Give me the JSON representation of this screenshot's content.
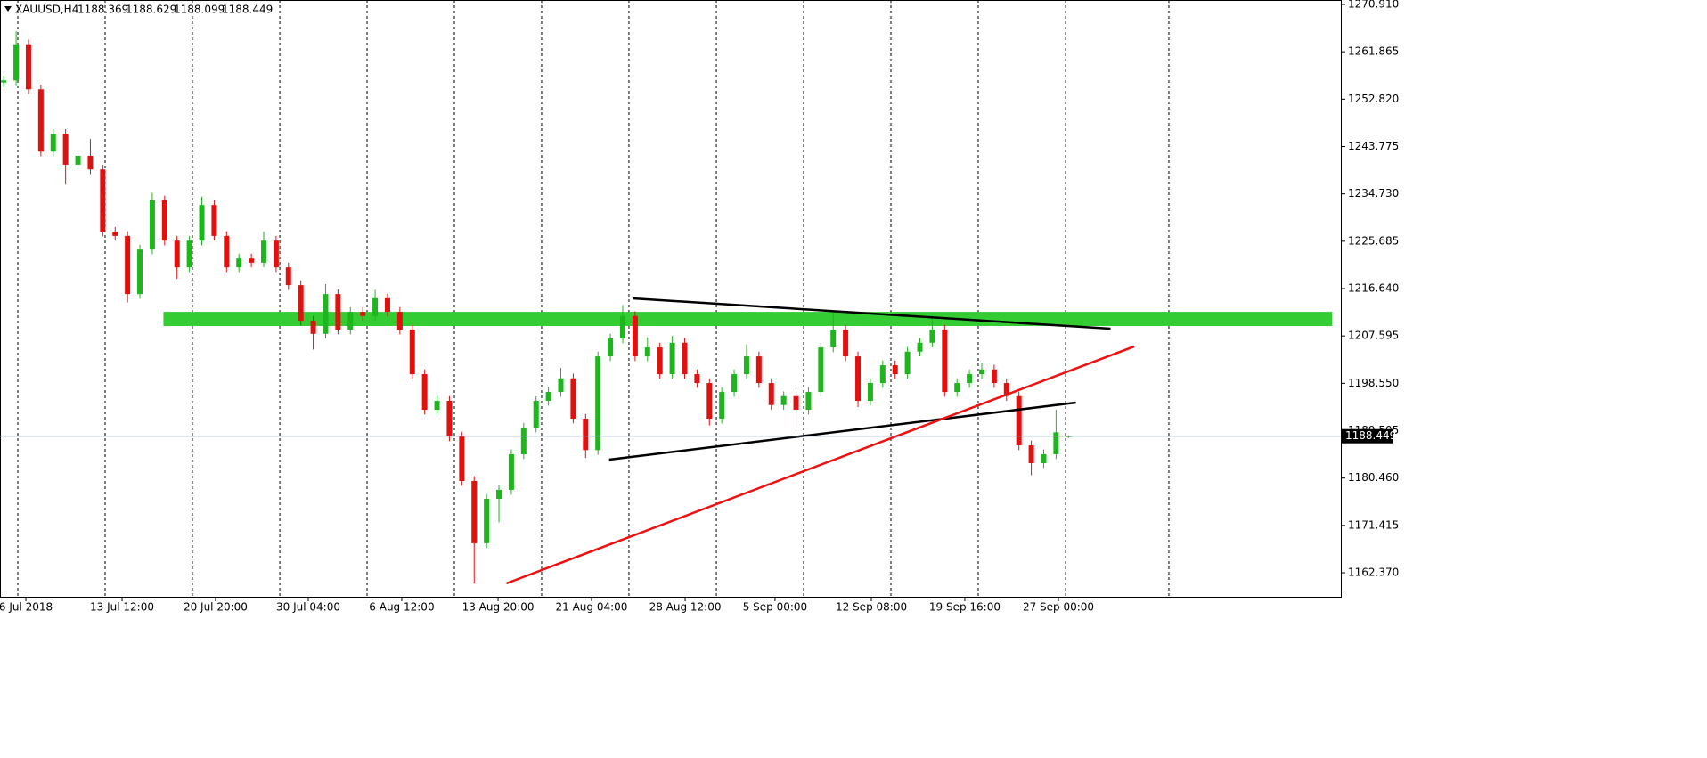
{
  "chart_data": {
    "type": "candlestick",
    "symbol": "XAUUSD,H4",
    "up_color": "#1fb51f",
    "down_color": "#e31010",
    "xlim": [
      -0.3,
      108.0
    ],
    "ylim": [
      1157.78,
      1271.76
    ],
    "yticks": [
      {
        "value": 1270.91,
        "label": "1270.910"
      },
      1261.865,
      {
        "value": 1252.82,
        "label": "1252.820"
      },
      1243.775,
      {
        "value": 1234.73,
        "label": "1234.730"
      },
      1225.685,
      {
        "value": 1216.64,
        "label": "1216.640"
      },
      1207.595,
      {
        "value": 1198.55,
        "label": "1198.550"
      },
      1189.505,
      {
        "value": 1180.46,
        "label": "1180.460"
      },
      1171.415,
      {
        "value": 1162.37,
        "label": "1162.370"
      }
    ],
    "xticks": [
      {
        "value": 1.79,
        "label": "6 Jul 2018"
      },
      {
        "value": 9.56,
        "label": "13 Jul 12:00"
      },
      {
        "value": 17.11,
        "label": "20 Jul 20:00"
      },
      {
        "value": 24.6,
        "label": "30 Jul 04:00"
      },
      {
        "value": 32.15,
        "label": "6 Aug 12:00"
      },
      {
        "value": 39.93,
        "label": "13 Aug 20:00"
      },
      {
        "value": 47.48,
        "label": "21 Aug 04:00"
      },
      {
        "value": 55.04,
        "label": "28 Aug 12:00"
      },
      {
        "value": 62.3,
        "label": "5 Sep 00:00"
      },
      {
        "value": 70.08,
        "label": "12 Sep 08:00"
      },
      {
        "value": 77.63,
        "label": "19 Sep 16:00"
      },
      {
        "value": 85.19,
        "label": "27 Sep 00:00"
      }
    ],
    "xgrid": [
      1.14,
      8.19,
      15.24,
      22.3,
      29.35,
      36.4,
      43.45,
      50.5,
      57.56,
      64.61,
      71.66,
      78.71,
      85.77,
      94.11
    ],
    "candles": [
      [
        1256.0,
        1257.3,
        1255.1,
        1256.4
      ],
      [
        1256.4,
        1265.8,
        1255.5,
        1263.3
      ],
      [
        1263.3,
        1264.2,
        1253.8,
        1254.7
      ],
      [
        1254.7,
        1255.6,
        1241.9,
        1242.8
      ],
      [
        1242.8,
        1247.1,
        1241.9,
        1246.2
      ],
      [
        1246.2,
        1247.1,
        1236.5,
        1240.3
      ],
      [
        1240.3,
        1242.9,
        1239.4,
        1242.0
      ],
      [
        1242.0,
        1245.2,
        1238.5,
        1239.4
      ],
      [
        1239.4,
        1240.3,
        1226.6,
        1227.5
      ],
      [
        1227.5,
        1228.4,
        1225.8,
        1226.7
      ],
      [
        1226.7,
        1227.6,
        1214.0,
        1215.6
      ],
      [
        1215.6,
        1225.0,
        1214.7,
        1224.1
      ],
      [
        1224.1,
        1234.9,
        1223.2,
        1233.5
      ],
      [
        1233.5,
        1234.4,
        1224.9,
        1225.8
      ],
      [
        1225.8,
        1226.7,
        1218.5,
        1220.7
      ],
      [
        1220.7,
        1226.7,
        1219.8,
        1225.8
      ],
      [
        1225.8,
        1234.2,
        1224.9,
        1232.6
      ],
      [
        1232.6,
        1233.5,
        1225.8,
        1226.7
      ],
      [
        1226.7,
        1227.6,
        1219.8,
        1220.7
      ],
      [
        1220.7,
        1223.3,
        1219.8,
        1222.4
      ],
      [
        1222.4,
        1223.3,
        1220.7,
        1221.6
      ],
      [
        1221.6,
        1227.5,
        1220.7,
        1225.8
      ],
      [
        1225.8,
        1226.7,
        1219.8,
        1220.7
      ],
      [
        1220.7,
        1221.6,
        1216.4,
        1217.3
      ],
      [
        1217.3,
        1218.2,
        1209.6,
        1210.5
      ],
      [
        1210.5,
        1211.4,
        1205.0,
        1208.0
      ],
      [
        1208.0,
        1217.5,
        1207.1,
        1215.6
      ],
      [
        1215.6,
        1216.5,
        1207.9,
        1208.8
      ],
      [
        1208.8,
        1213.1,
        1207.9,
        1212.2
      ],
      [
        1212.2,
        1213.1,
        1210.5,
        1211.4
      ],
      [
        1211.4,
        1216.4,
        1210.5,
        1214.8
      ],
      [
        1214.8,
        1215.7,
        1211.3,
        1212.2
      ],
      [
        1212.2,
        1213.1,
        1207.9,
        1208.8
      ],
      [
        1208.8,
        1209.7,
        1199.4,
        1200.3
      ],
      [
        1200.3,
        1201.2,
        1192.6,
        1193.5
      ],
      [
        1193.5,
        1196.1,
        1192.6,
        1195.2
      ],
      [
        1195.2,
        1196.1,
        1187.5,
        1188.4
      ],
      [
        1188.4,
        1189.3,
        1179.0,
        1179.9
      ],
      [
        1179.9,
        1180.8,
        1160.3,
        1168.0
      ],
      [
        1168.0,
        1177.4,
        1167.1,
        1176.5
      ],
      [
        1176.5,
        1179.1,
        1172.0,
        1178.2
      ],
      [
        1178.2,
        1185.9,
        1177.3,
        1185.0
      ],
      [
        1185.0,
        1191.0,
        1184.1,
        1190.1
      ],
      [
        1190.1,
        1196.1,
        1189.2,
        1195.2
      ],
      [
        1195.2,
        1197.8,
        1194.3,
        1196.9
      ],
      [
        1196.9,
        1201.5,
        1196.0,
        1199.5
      ],
      [
        1199.5,
        1200.4,
        1190.9,
        1191.8
      ],
      [
        1191.8,
        1192.7,
        1184.3,
        1185.8
      ],
      [
        1185.8,
        1204.6,
        1184.9,
        1203.7
      ],
      [
        1203.7,
        1208.0,
        1202.8,
        1207.1
      ],
      [
        1207.1,
        1213.5,
        1206.2,
        1211.4
      ],
      [
        1211.4,
        1212.3,
        1202.8,
        1203.7
      ],
      [
        1203.7,
        1207.3,
        1202.8,
        1205.4
      ],
      [
        1205.4,
        1206.3,
        1199.4,
        1200.3
      ],
      [
        1200.3,
        1207.6,
        1199.4,
        1206.3
      ],
      [
        1206.3,
        1207.2,
        1199.4,
        1200.3
      ],
      [
        1200.3,
        1201.2,
        1197.7,
        1198.6
      ],
      [
        1198.6,
        1199.5,
        1190.5,
        1191.8
      ],
      [
        1191.8,
        1197.8,
        1190.9,
        1196.9
      ],
      [
        1196.9,
        1201.2,
        1196.0,
        1200.3
      ],
      [
        1200.3,
        1206.0,
        1199.4,
        1203.7
      ],
      [
        1203.7,
        1204.6,
        1197.7,
        1198.6
      ],
      [
        1198.6,
        1199.5,
        1193.5,
        1194.4
      ],
      [
        1194.4,
        1197.0,
        1193.5,
        1196.1
      ],
      [
        1196.1,
        1197.0,
        1190.0,
        1193.5
      ],
      [
        1193.5,
        1197.8,
        1192.6,
        1196.9
      ],
      [
        1196.9,
        1206.3,
        1196.0,
        1205.4
      ],
      [
        1205.4,
        1212.0,
        1204.5,
        1208.8
      ],
      [
        1208.8,
        1209.7,
        1202.8,
        1203.7
      ],
      [
        1203.7,
        1204.6,
        1194.0,
        1195.2
      ],
      [
        1195.2,
        1199.5,
        1194.3,
        1198.6
      ],
      [
        1198.6,
        1202.9,
        1197.7,
        1202.0
      ],
      [
        1202.0,
        1202.9,
        1199.4,
        1200.3
      ],
      [
        1200.3,
        1205.5,
        1199.4,
        1204.6
      ],
      [
        1204.6,
        1207.2,
        1203.7,
        1206.3
      ],
      [
        1206.3,
        1211.5,
        1205.4,
        1208.8
      ],
      [
        1208.8,
        1209.7,
        1196.0,
        1196.9
      ],
      [
        1196.9,
        1199.5,
        1196.0,
        1198.6
      ],
      [
        1198.6,
        1201.2,
        1197.7,
        1200.3
      ],
      [
        1200.3,
        1202.5,
        1199.4,
        1201.2
      ],
      [
        1201.2,
        1202.1,
        1197.7,
        1198.6
      ],
      [
        1198.6,
        1199.5,
        1195.2,
        1196.1
      ],
      [
        1196.1,
        1197.0,
        1185.8,
        1186.7
      ],
      [
        1186.7,
        1187.6,
        1181.0,
        1183.3
      ],
      [
        1183.3,
        1185.9,
        1182.4,
        1185.0
      ],
      [
        1185.0,
        1193.5,
        1184.1,
        1189.2
      ],
      [
        1188.369,
        1188.629,
        1188.099,
        1188.449
      ]
    ],
    "zone": {
      "x": [
        12.9,
        107.3
      ],
      "y": [
        1209.5,
        1212.2
      ],
      "color": "#33cc33"
    },
    "trendlines": [
      {
        "x": [
          50.8,
          89.4
        ],
        "y": [
          1214.77,
          1208.98
        ],
        "color": "#000000"
      },
      {
        "x": [
          48.9,
          86.6
        ],
        "y": [
          1183.97,
          1194.86
        ],
        "color": "#000000"
      },
      {
        "x": [
          40.6,
          91.3
        ],
        "y": [
          1160.33,
          1205.58
        ],
        "color": "#ee1111"
      }
    ]
  }
}
